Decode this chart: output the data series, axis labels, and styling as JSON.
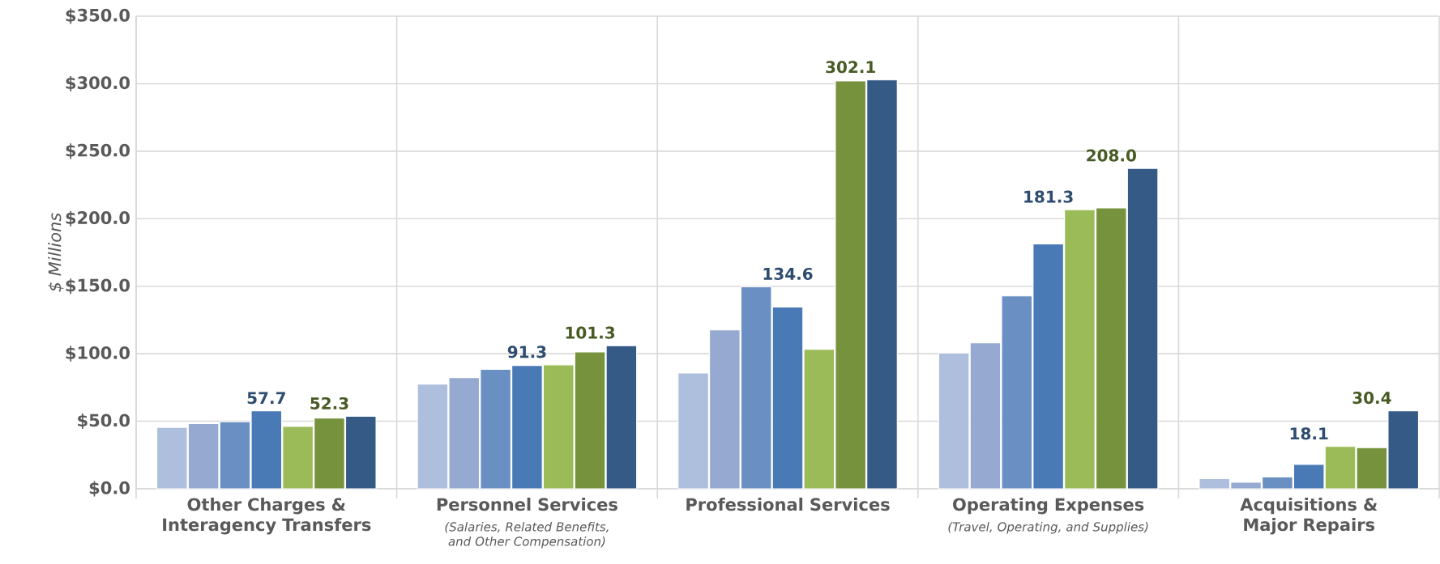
{
  "chart_data": {
    "type": "bar",
    "ylabel": "$ Millions",
    "categories": [
      "Other Charges & Interagency Transfers",
      "Personnel Services",
      "Professional Services",
      "Operating Expenses",
      "Acquisitions & Major Repairs"
    ],
    "series": [
      {
        "color": "#adbfdc",
        "values": [
          45.5,
          77.5,
          85.7,
          100.6,
          7.5
        ],
        "value_labels": [
          null,
          null,
          null,
          null,
          null
        ]
      },
      {
        "color": "#95a9d1",
        "values": [
          48.3,
          82.3,
          117.6,
          108.1,
          4.8
        ],
        "value_labels": [
          null,
          null,
          null,
          null,
          null
        ]
      },
      {
        "color": "#6a8fc3",
        "values": [
          49.6,
          88.4,
          149.6,
          142.8,
          8.8
        ],
        "value_labels": [
          null,
          null,
          null,
          null,
          null
        ]
      },
      {
        "color": "#4a7ab5",
        "values": [
          57.7,
          91.3,
          134.6,
          181.3,
          18.1
        ],
        "value_labels": [
          "57.7",
          "91.3",
          "134.6",
          "181.3",
          "18.1"
        ]
      },
      {
        "color": "#9bbb59",
        "values": [
          46.2,
          91.8,
          103.3,
          206.7,
          31.3
        ],
        "value_labels": [
          null,
          null,
          null,
          null,
          null
        ]
      },
      {
        "color": "#76923c",
        "values": [
          52.3,
          101.3,
          302.1,
          208.0,
          30.4
        ],
        "value_labels": [
          "52.3",
          "101.3",
          "302.1",
          "208.0",
          "30.4"
        ]
      },
      {
        "color": "#355a86",
        "values": [
          53.7,
          106.0,
          302.8,
          237.3,
          57.8
        ],
        "value_labels": [
          null,
          null,
          null,
          null,
          null
        ]
      }
    ],
    "ylim": [
      0,
      350
    ],
    "yticks": [
      {
        "value": 0,
        "label": "$0.0"
      },
      {
        "value": 50,
        "label": "$50.0"
      },
      {
        "value": 100,
        "label": "$100.0"
      },
      {
        "value": 150,
        "label": "$150.0"
      },
      {
        "value": 200,
        "label": "$200.0"
      },
      {
        "value": 250,
        "label": "$250.0"
      },
      {
        "value": 300,
        "label": "$300.0"
      },
      {
        "value": 350,
        "label": "$350.0"
      }
    ],
    "grid": true,
    "annotations": [
      "(Salaries, Related Benefits, and Other Compensation)",
      "(Travel, Operating, and Supplies)"
    ]
  }
}
